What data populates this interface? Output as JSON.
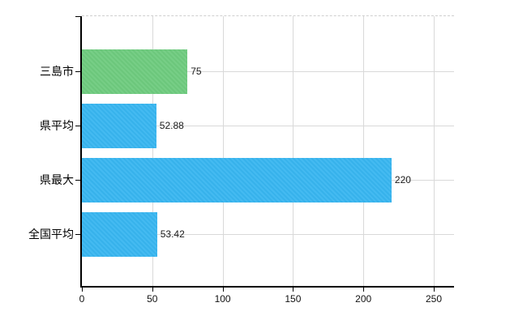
{
  "chart_data": {
    "type": "bar",
    "orientation": "horizontal",
    "title": "",
    "categories": [
      "三島市",
      "県平均",
      "県最大",
      "全国平均"
    ],
    "values": [
      75,
      52.88,
      220,
      53.42
    ],
    "value_labels": [
      "75",
      "52.88",
      "220",
      "53.42"
    ],
    "bar_colors": [
      "#6ecb7e",
      "#38b6f0",
      "#38b6f0",
      "#38b6f0"
    ],
    "x_ticks": [
      0,
      50,
      100,
      150,
      200,
      250
    ],
    "x_tick_labels": [
      "0",
      "50",
      "100",
      "150",
      "200",
      "250"
    ],
    "xlim": [
      0,
      264
    ],
    "grid": true,
    "legend": false,
    "colors": {
      "accent_green": "#6ecb7e",
      "accent_blue": "#38b6f0",
      "grid": "#d9d9d9",
      "plot_border_dashed": "#cfcfcf",
      "axis": "#000000",
      "text": "#1a1a1a",
      "background": "#ffffff"
    }
  }
}
